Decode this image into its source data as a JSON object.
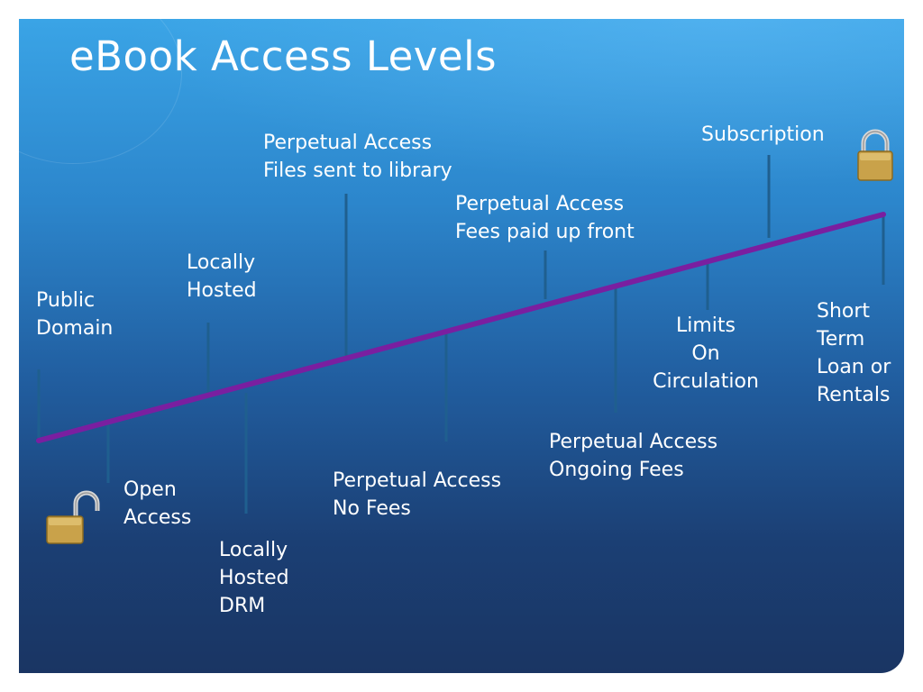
{
  "title": "eBook Access Levels",
  "labels": {
    "public_domain": [
      "Public",
      "Domain"
    ],
    "open_access": [
      "Open",
      "Access"
    ],
    "locally_hosted": [
      "Locally",
      "Hosted"
    ],
    "locally_hosted_drm": [
      "Locally",
      "Hosted",
      "DRM"
    ],
    "perpetual_files": [
      "Perpetual Access",
      "Files sent to library"
    ],
    "perpetual_no_fees": [
      "Perpetual Access",
      "No Fees"
    ],
    "perpetual_paid_up_front": [
      "Perpetual Access",
      "Fees paid up front"
    ],
    "perpetual_ongoing": [
      "Perpetual Access",
      "Ongoing Fees"
    ],
    "limits_circulation": [
      "Limits",
      "On",
      "Circulation"
    ],
    "subscription": [
      "Subscription"
    ],
    "short_term": [
      "Short",
      "Term",
      "Loan or",
      "Rentals"
    ]
  },
  "icons": {
    "open_lock": "padlock-open-icon",
    "closed_lock": "padlock-closed-icon"
  },
  "colors": {
    "timeline": "#7a1fa0",
    "tick": "#1f5f8f",
    "text": "#ffffff"
  }
}
